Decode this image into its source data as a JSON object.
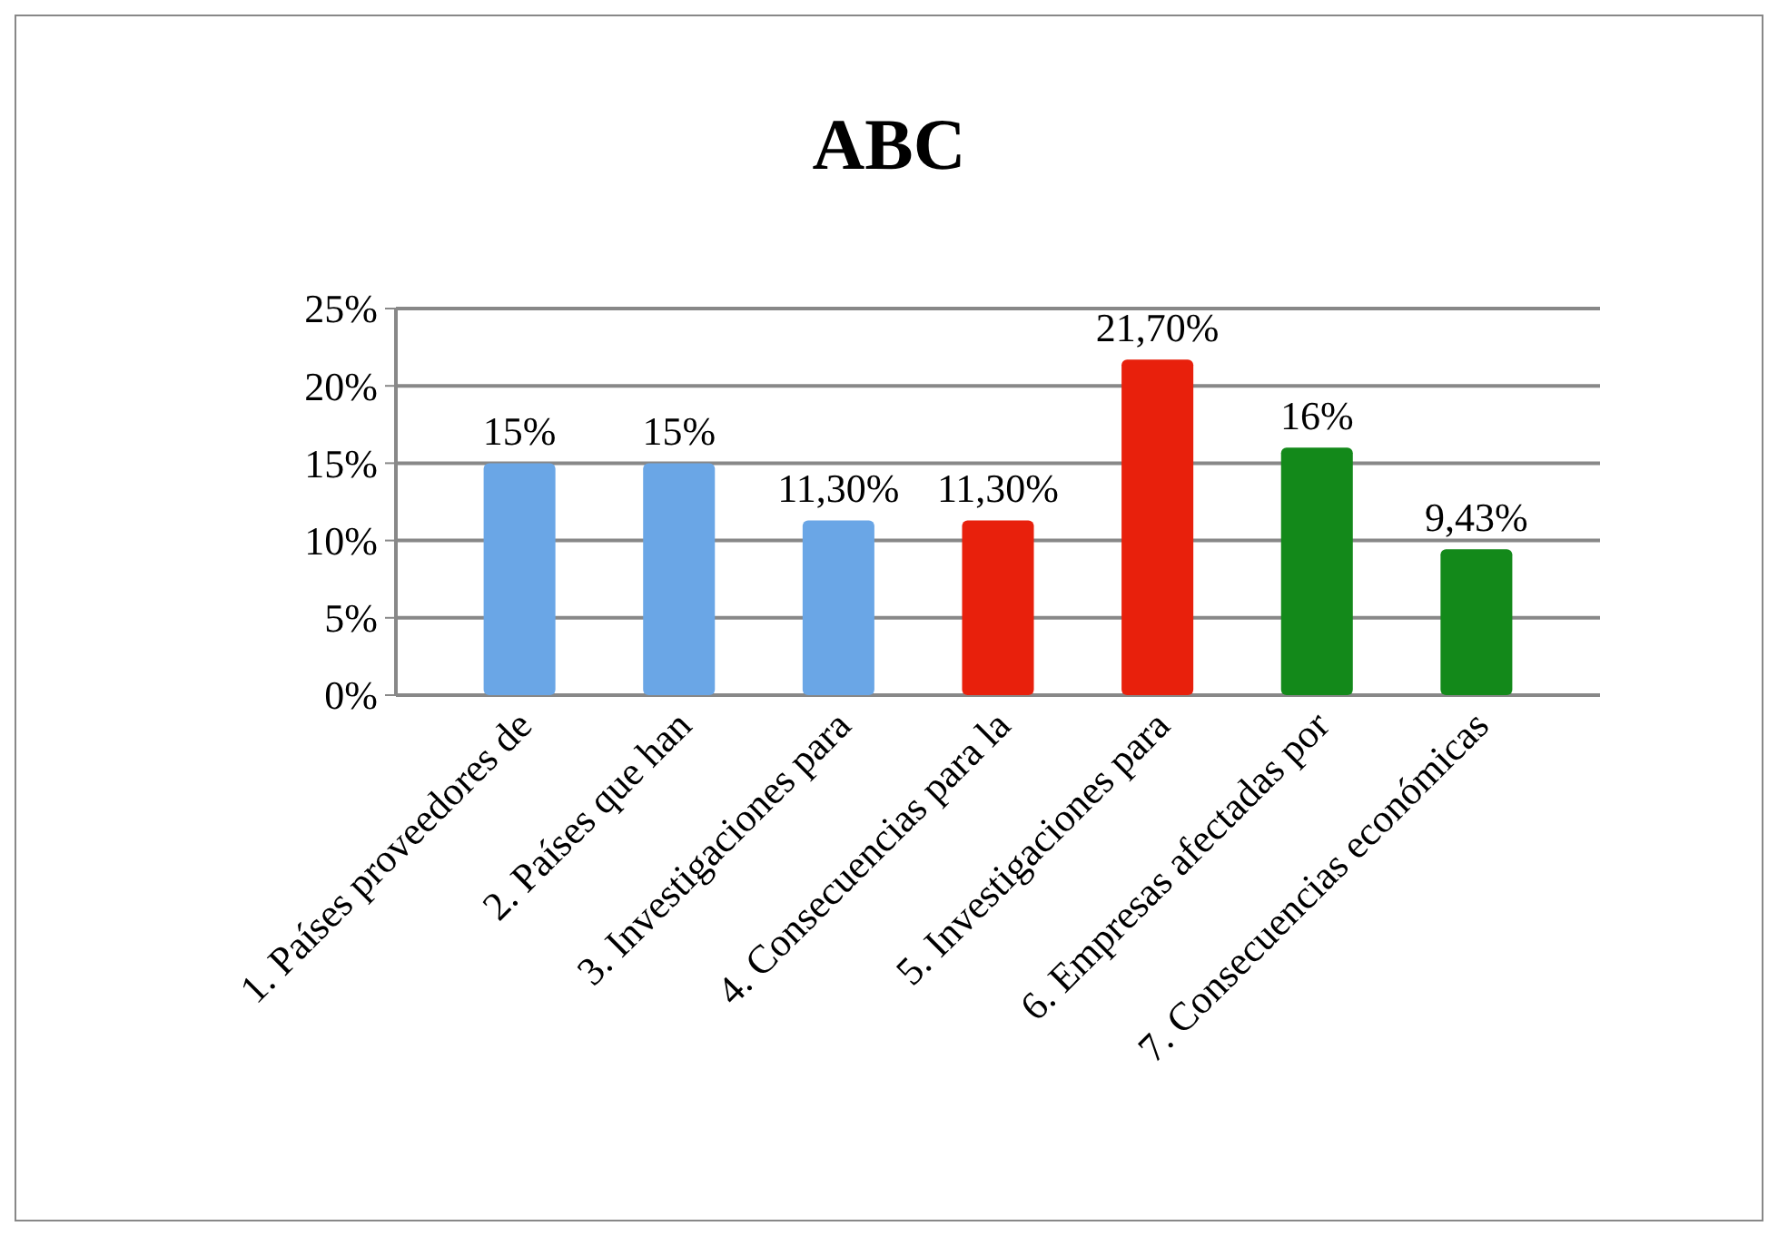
{
  "chart_data": {
    "type": "bar",
    "title": "ABC",
    "categories": [
      "1. Países proveedores de",
      "2. Países que han",
      "3. Investigaciones para",
      "4. Consecuencias para la",
      "5. Investigaciones para",
      "6. Empresas afectadas por",
      "7. Consecuencias económicas"
    ],
    "values": [
      15,
      15,
      11.3,
      11.3,
      21.7,
      16,
      9.43
    ],
    "value_labels": [
      "15%",
      "15%",
      "11,30%",
      "11,30%",
      "21,70%",
      "16%",
      "9,43%"
    ],
    "colors": [
      "#6aa6e6",
      "#6aa6e6",
      "#6aa6e6",
      "#e8200c",
      "#e8200c",
      "#13891a",
      "#13891a"
    ],
    "ylim": [
      0,
      25
    ],
    "yticks": [
      {
        "value": 0,
        "label": "0%"
      },
      {
        "value": 5,
        "label": "5%"
      },
      {
        "value": 10,
        "label": "10%"
      },
      {
        "value": 15,
        "label": "15%"
      },
      {
        "value": 20,
        "label": "20%"
      },
      {
        "value": 25,
        "label": "25%"
      }
    ],
    "grid": "y"
  }
}
